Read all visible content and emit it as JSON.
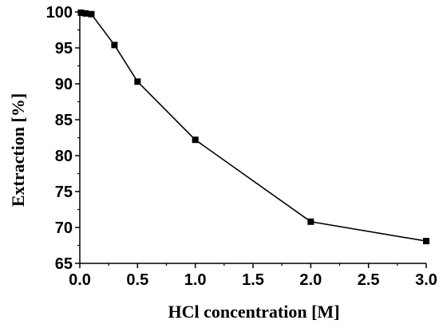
{
  "chart_data": {
    "type": "line",
    "title": "",
    "xlabel": "HCl concentration [M]",
    "ylabel": "Extraction [%]",
    "xlim": [
      0.0,
      3.0
    ],
    "ylim": [
      65,
      100
    ],
    "xticks": [
      "0.0",
      "0.5",
      "1.0",
      "1.5",
      "2.0",
      "2.5",
      "3.0"
    ],
    "yticks": [
      "65",
      "70",
      "75",
      "80",
      "85",
      "90",
      "95",
      "100"
    ],
    "grid": false,
    "legend": "none",
    "marker": "square",
    "color": "#000000",
    "series": [
      {
        "x": [
          0.01,
          0.05,
          0.1,
          0.3,
          0.5,
          1.0,
          2.0,
          3.0
        ],
        "y": [
          99.9,
          99.8,
          99.7,
          95.4,
          90.3,
          82.2,
          70.8,
          68.1
        ]
      }
    ]
  }
}
